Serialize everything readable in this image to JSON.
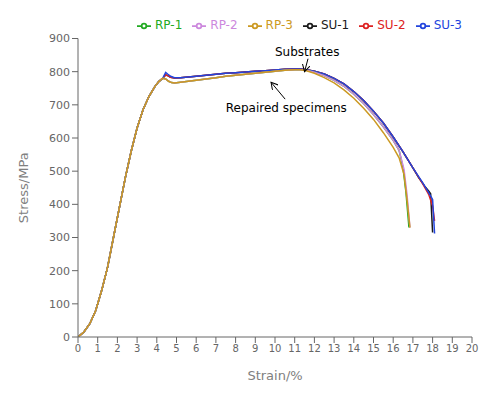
{
  "chart_data": {
    "type": "line",
    "xlabel": "Strain/%",
    "ylabel": "Stress/MPa",
    "xlim": [
      0,
      20
    ],
    "ylim": [
      0,
      900
    ],
    "xticks": [
      0,
      1,
      2,
      3,
      4,
      5,
      6,
      7,
      8,
      9,
      10,
      11,
      12,
      13,
      14,
      15,
      16,
      17,
      18,
      19,
      20
    ],
    "yticks": [
      0,
      100,
      200,
      300,
      400,
      500,
      600,
      700,
      800,
      900
    ],
    "grid": false,
    "legend": "upper right",
    "series": [
      {
        "name": "SU-1",
        "color": "#1a1a1a",
        "x": [
          0,
          0.3,
          0.6,
          0.9,
          1.2,
          1.5,
          1.8,
          2.1,
          2.4,
          2.7,
          3.0,
          3.3,
          3.6,
          3.9,
          4.1,
          4.3,
          4.45,
          4.55,
          4.7,
          4.9,
          5.2,
          5.6,
          6.0,
          6.5,
          7.0,
          7.5,
          8.0,
          8.5,
          9.0,
          9.5,
          10.0,
          10.5,
          11.0,
          11.3,
          11.6,
          12.0,
          12.5,
          13.0,
          13.5,
          14.0,
          14.5,
          15.0,
          15.5,
          16.0,
          16.5,
          17.0,
          17.3,
          17.6,
          17.8,
          17.9,
          18.0
        ],
        "values": [
          0,
          15,
          40,
          80,
          140,
          210,
          300,
          390,
          480,
          560,
          630,
          685,
          725,
          755,
          770,
          780,
          790,
          788,
          783,
          781,
          782,
          784,
          786,
          789,
          792,
          795,
          797,
          799,
          801,
          803,
          805,
          807,
          808,
          808,
          806,
          801,
          793,
          780,
          763,
          740,
          713,
          681,
          645,
          603,
          558,
          510,
          480,
          455,
          440,
          432,
          315
        ]
      },
      {
        "name": "SU-2",
        "color": "#dd2222",
        "x": [
          0,
          0.3,
          0.6,
          0.9,
          1.2,
          1.5,
          1.8,
          2.1,
          2.4,
          2.7,
          3.0,
          3.3,
          3.6,
          3.9,
          4.1,
          4.3,
          4.45,
          4.55,
          4.7,
          4.9,
          5.2,
          5.6,
          6.0,
          6.5,
          7.0,
          7.5,
          8.0,
          8.5,
          9.0,
          9.5,
          10.0,
          10.5,
          11.0,
          11.3,
          11.6,
          12.0,
          12.5,
          13.0,
          13.5,
          14.0,
          14.5,
          15.0,
          15.5,
          16.0,
          16.5,
          17.0,
          17.5,
          17.8,
          18.0,
          18.1
        ],
        "values": [
          0,
          15,
          40,
          80,
          140,
          210,
          300,
          390,
          480,
          560,
          630,
          685,
          725,
          755,
          770,
          780,
          790,
          788,
          783,
          781,
          782,
          784,
          786,
          789,
          792,
          795,
          797,
          799,
          801,
          803,
          805,
          807,
          808,
          808,
          806,
          801,
          793,
          780,
          763,
          740,
          713,
          681,
          645,
          603,
          558,
          510,
          462,
          430,
          395,
          350
        ]
      },
      {
        "name": "SU-3",
        "color": "#2244dd",
        "x": [
          0,
          0.3,
          0.6,
          0.9,
          1.2,
          1.5,
          1.8,
          2.1,
          2.4,
          2.7,
          3.0,
          3.3,
          3.6,
          3.9,
          4.1,
          4.3,
          4.45,
          4.55,
          4.7,
          4.9,
          5.2,
          5.6,
          6.0,
          6.5,
          7.0,
          7.5,
          8.0,
          8.5,
          9.0,
          9.5,
          10.0,
          10.5,
          11.0,
          11.3,
          11.6,
          12.0,
          12.5,
          13.0,
          13.5,
          14.0,
          14.5,
          15.0,
          15.5,
          16.0,
          16.5,
          17.0,
          17.5,
          17.8,
          18.0,
          18.1
        ],
        "values": [
          0,
          15,
          40,
          80,
          140,
          210,
          300,
          390,
          480,
          560,
          630,
          685,
          725,
          755,
          770,
          780,
          798,
          793,
          786,
          782,
          782,
          784,
          786,
          789,
          792,
          795,
          797,
          799,
          801,
          803,
          805,
          807,
          808,
          808,
          806,
          801,
          793,
          780,
          763,
          740,
          713,
          681,
          645,
          603,
          558,
          510,
          465,
          435,
          415,
          312
        ]
      },
      {
        "name": "RP-1",
        "color": "#22aa22",
        "x": [
          0,
          0.3,
          0.6,
          0.9,
          1.2,
          1.5,
          1.8,
          2.1,
          2.4,
          2.7,
          3.0,
          3.3,
          3.6,
          3.9,
          4.1,
          4.3,
          4.45,
          4.6,
          4.75,
          4.9,
          5.2,
          5.6,
          6.0,
          6.5,
          7.0,
          7.5,
          8.0,
          8.5,
          9.0,
          9.5,
          10.0,
          10.5,
          11.0,
          11.3,
          11.6,
          12.0,
          12.5,
          13.0,
          13.5,
          14.0,
          14.5,
          15.0,
          15.5,
          16.0,
          16.3,
          16.5,
          16.65,
          16.8
        ],
        "values": [
          0,
          15,
          40,
          80,
          140,
          210,
          300,
          390,
          480,
          560,
          630,
          685,
          725,
          755,
          770,
          780,
          778,
          771,
          767,
          766,
          768,
          771,
          774,
          778,
          782,
          786,
          789,
          792,
          795,
          798,
          801,
          804,
          806,
          806,
          804,
          798,
          788,
          774,
          756,
          732,
          704,
          671,
          634,
          593,
          563,
          510,
          435,
          330
        ]
      },
      {
        "name": "RP-2",
        "color": "#cc88dd",
        "x": [
          0,
          0.3,
          0.6,
          0.9,
          1.2,
          1.5,
          1.8,
          2.1,
          2.4,
          2.7,
          3.0,
          3.3,
          3.6,
          3.9,
          4.1,
          4.3,
          4.45,
          4.6,
          4.75,
          4.9,
          5.2,
          5.6,
          6.0,
          6.5,
          7.0,
          7.5,
          8.0,
          8.5,
          9.0,
          9.5,
          10.0,
          10.5,
          11.0,
          11.3,
          11.6,
          12.0,
          12.5,
          13.0,
          13.5,
          14.0,
          14.5,
          15.0,
          15.5,
          16.0,
          16.3,
          16.55,
          16.7,
          16.85
        ],
        "values": [
          0,
          15,
          40,
          80,
          140,
          210,
          300,
          390,
          480,
          560,
          630,
          685,
          725,
          755,
          770,
          780,
          778,
          771,
          767,
          766,
          768,
          771,
          774,
          778,
          782,
          786,
          789,
          792,
          795,
          798,
          801,
          804,
          806,
          806,
          804,
          798,
          788,
          774,
          756,
          732,
          704,
          671,
          634,
          593,
          563,
          505,
          430,
          330
        ]
      },
      {
        "name": "RP-3",
        "color": "#cc9922",
        "x": [
          0,
          0.3,
          0.6,
          0.9,
          1.2,
          1.5,
          1.8,
          2.1,
          2.4,
          2.7,
          3.0,
          3.3,
          3.6,
          3.9,
          4.1,
          4.3,
          4.45,
          4.6,
          4.75,
          4.9,
          5.2,
          5.6,
          6.0,
          6.5,
          7.0,
          7.5,
          8.0,
          8.5,
          9.0,
          9.5,
          10.0,
          10.5,
          11.0,
          11.3,
          11.6,
          12.0,
          12.5,
          13.0,
          13.5,
          14.0,
          14.5,
          15.0,
          15.5,
          16.0,
          16.3,
          16.55,
          16.7,
          16.85
        ],
        "values": [
          0,
          15,
          40,
          80,
          140,
          210,
          300,
          390,
          480,
          560,
          630,
          685,
          725,
          755,
          770,
          780,
          778,
          771,
          767,
          766,
          768,
          771,
          774,
          778,
          782,
          786,
          789,
          792,
          795,
          798,
          801,
          804,
          806,
          806,
          803,
          795,
          782,
          766,
          745,
          720,
          690,
          656,
          616,
          572,
          540,
          490,
          415,
          330
        ]
      }
    ],
    "annotations": [
      {
        "text": "Substrates",
        "xy": [
          11.5,
          800
        ],
        "xytext": [
          10.0,
          848
        ]
      },
      {
        "text": "Repaired specimens",
        "xy": [
          9.8,
          768
        ],
        "xytext": [
          7.5,
          678
        ]
      }
    ]
  }
}
